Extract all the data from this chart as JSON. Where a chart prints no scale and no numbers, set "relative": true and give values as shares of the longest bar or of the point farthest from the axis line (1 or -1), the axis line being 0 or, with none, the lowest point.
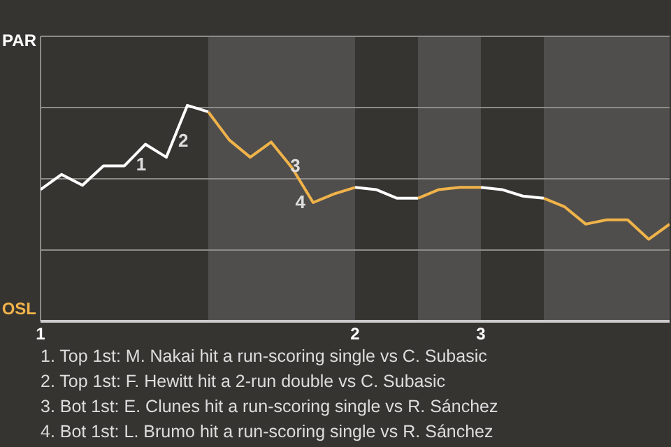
{
  "chart_data": {
    "type": "line",
    "categories": [
      "1",
      null,
      null,
      null,
      null,
      null,
      null,
      null,
      null,
      null,
      null,
      null,
      null,
      null,
      null,
      "2",
      null,
      null,
      null,
      null,
      null,
      "3",
      null,
      null,
      null,
      null,
      null,
      null,
      null,
      null,
      null
    ],
    "relative": true,
    "series": [
      {
        "color": "#ffffff",
        "values": [
          0.61,
          0.68,
          0.63,
          0.72,
          0.72,
          0.82,
          0.76,
          1,
          0.97,
          null,
          null,
          null,
          null,
          null,
          null,
          0.62,
          0.61,
          0.57,
          0.57,
          null,
          null,
          0.62,
          0.61,
          0.58,
          0.57,
          null,
          null,
          null,
          null,
          null,
          null
        ]
      },
      {
        "color": "#f0b34a",
        "values": [
          null,
          null,
          null,
          null,
          null,
          null,
          null,
          null,
          0.97,
          0.84,
          0.76,
          0.83,
          0.71,
          0.55,
          0.59,
          0.62,
          null,
          null,
          0.57,
          0.61,
          0.62,
          0.62,
          null,
          null,
          0.57,
          0.53,
          0.45,
          0.47,
          0.47,
          0.38,
          0.45
        ]
      }
    ],
    "ref_lines": [
      {
        "axis": "y",
        "value": 0.33,
        "color": "#8c8b88"
      },
      {
        "axis": "y",
        "value": 0.66,
        "color": "#8c8b88"
      },
      {
        "axis": "y",
        "value": 0.99,
        "color": "#8c8b88"
      }
    ],
    "legend": false,
    "marker": "none",
    "line_style": "solid",
    "annotations": [
      "PAR",
      "OSL",
      "1",
      "2",
      "3",
      "4",
      "1. Top 1st: M. Nakai hit a run-scoring single vs C. Subasic",
      "2. Top 1st: F. Hewitt hit a 2-run double vs C. Subasic",
      "3. Bot 1st: E. Clunes hit a run-scoring single vs R. Sánchez",
      "4. Bot 1st: L. Brumo hit a run-scoring single vs R. Sánchez"
    ]
  }
}
